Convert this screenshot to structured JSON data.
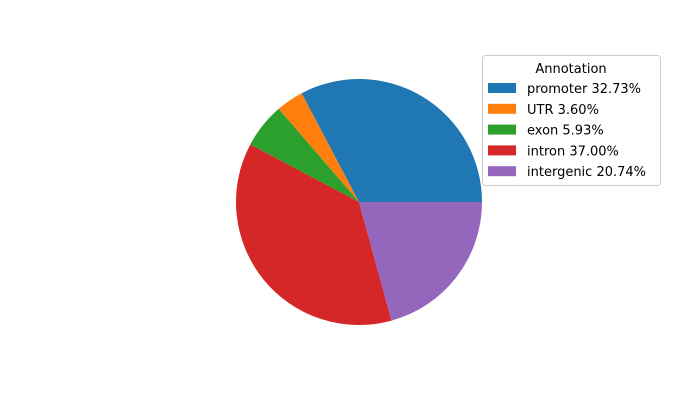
{
  "chart_data": {
    "type": "pie",
    "start_angle_deg": 0,
    "direction": "counterclockwise",
    "legend_title": "Annotation",
    "legend_position": "upper-right",
    "slices": [
      {
        "label": "promoter 32.73%",
        "value": 32.73,
        "color": "#1f77b4"
      },
      {
        "label": "UTR 3.60%",
        "value": 3.6,
        "color": "#ff7f0e"
      },
      {
        "label": "exon 5.93%",
        "value": 5.93,
        "color": "#2ca02c"
      },
      {
        "label": "intron 37.00%",
        "value": 37.0,
        "color": "#d62728"
      },
      {
        "label": "intergenic 20.74%",
        "value": 20.74,
        "color": "#9467bd"
      }
    ]
  }
}
